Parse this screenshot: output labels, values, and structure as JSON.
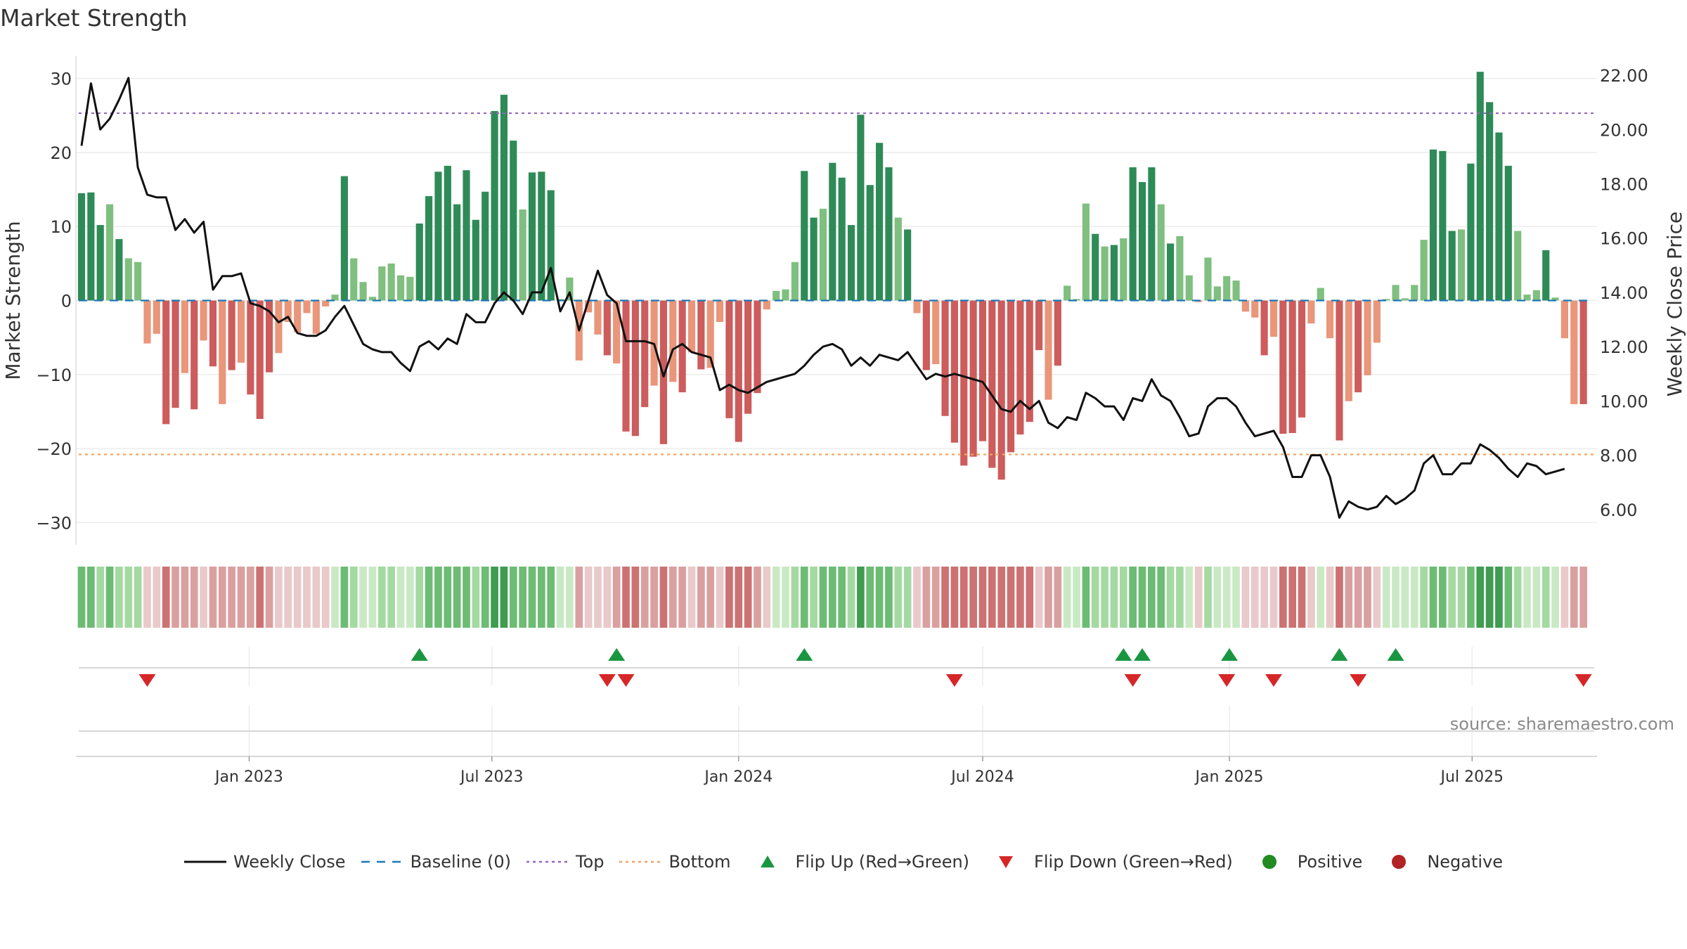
{
  "title": "Market Strength",
  "source": "source: sharemaestro.com",
  "colors": {
    "green_strong": "#2e8b57",
    "green_light": "#7fbf7f",
    "red_strong": "#cd5c5c",
    "red_light": "#e9967a",
    "close_line": "#111111",
    "baseline": "#1f77b4",
    "top": "#9467bd",
    "bottom": "#f4a460",
    "flip_up": "#1a9641",
    "flip_down": "#d62728",
    "positive": "#228b22",
    "negative": "#b22222"
  },
  "legend": [
    {
      "key": "close",
      "label": "Weekly Close"
    },
    {
      "key": "baseline",
      "label": "Baseline (0)"
    },
    {
      "key": "top",
      "label": "Top"
    },
    {
      "key": "bottom",
      "label": "Bottom"
    },
    {
      "key": "flip_up",
      "label": "Flip Up (Red→Green)"
    },
    {
      "key": "flip_down",
      "label": "Flip Down (Green→Red)"
    },
    {
      "key": "positive",
      "label": "Positive"
    },
    {
      "key": "negative",
      "label": "Negative"
    }
  ],
  "chart_data": {
    "type": "bar",
    "title": "Market Strength",
    "ylabel": "Market Strength",
    "y2label": "Weekly Close Price",
    "ylim": [
      -33,
      33
    ],
    "yticks": [
      30,
      20,
      10,
      0,
      -10,
      -20,
      -30
    ],
    "ytick_labels": [
      "30",
      "20",
      "10",
      "0",
      "−10",
      "−20",
      "−30"
    ],
    "y2lim": [
      4.7,
      22.7
    ],
    "y2ticks": [
      22,
      20,
      18,
      16,
      14,
      12,
      10,
      8,
      6
    ],
    "y2tick_labels": [
      "22.00",
      "20.00",
      "18.00",
      "16.00",
      "14.00",
      "12.00",
      "10.00",
      "8.00",
      "6.00"
    ],
    "x_start": "2022-08-29",
    "x_end": "2025-09-29",
    "x_step_days": 7,
    "xtick_dates": [
      "2023-01-01",
      "2023-07-01",
      "2024-01-01",
      "2024-07-01",
      "2025-01-01",
      "2025-07-01"
    ],
    "xtick_labels": [
      "Jan 2023",
      "Jul 2023",
      "Jan 2024",
      "Jul 2024",
      "Jan 2025",
      "Jul 2025"
    ],
    "top_level": 25.3,
    "bottom_level": -20.8,
    "baseline": 0,
    "strength": [
      14.5,
      14.6,
      10.2,
      13,
      8.3,
      5.7,
      5.2,
      -5.8,
      -4.5,
      -16.7,
      -14.5,
      -9.8,
      -14.7,
      -5.4,
      -8.9,
      -14,
      -9.4,
      -8.4,
      -12.7,
      -16,
      -9.7,
      -7.1,
      -2.9,
      -4.3,
      -1.7,
      -4.5,
      -0.8,
      0.8,
      16.8,
      5.7,
      2.5,
      0.5,
      4.6,
      5,
      3.4,
      3.2,
      10.4,
      14.1,
      17.4,
      18.2,
      13,
      17.6,
      10.9,
      14.7,
      25.6,
      27.8,
      21.6,
      12.3,
      17.3,
      17.4,
      14.9,
      0.2,
      3.1,
      -8.1,
      -1.6,
      -4.6,
      -7.4,
      -8.5,
      -17.7,
      -18.3,
      -14.4,
      -11.5,
      -19.4,
      -11,
      -12.4,
      -7,
      -9.3,
      -9.1,
      -2.9,
      -15.9,
      -19.1,
      -15.3,
      -12.5,
      -1.2,
      1.3,
      1.5,
      5.2,
      17.5,
      11.2,
      12.4,
      18.6,
      16.6,
      10.2,
      25.1,
      15.6,
      21.3,
      18,
      11.2,
      9.6,
      -1.7,
      -9.4,
      -8.6,
      -15.6,
      -19.2,
      -22.3,
      -21.1,
      -19,
      -22.6,
      -24.2,
      -20.5,
      -18.1,
      -16.4,
      -6.7,
      -13.4,
      -8.8,
      2,
      0.2,
      13.1,
      9,
      7.3,
      7.5,
      8.4,
      18,
      16,
      18,
      13,
      7.7,
      8.7,
      3.4,
      -0.2,
      5.8,
      1.9,
      3.3,
      2.7,
      -1.5,
      -2.3,
      -7.4,
      -4.9,
      -18,
      -17.9,
      -15.8,
      -3.1,
      1.7,
      -5.1,
      -18.9,
      -13.6,
      -12.4,
      -10.1,
      -5.7,
      0.2,
      2.1,
      0.3,
      2.1,
      8.2,
      20.4,
      20.2,
      9.4,
      9.6,
      18.5,
      30.9,
      26.8,
      22.7,
      18.2,
      9.4,
      0.8,
      1.4,
      6.8,
      0.4,
      -5.1,
      -14,
      -14
    ],
    "close": [
      19.4,
      21.7,
      20,
      20.4,
      21.1,
      21.9,
      18.6,
      17.6,
      17.5,
      17.5,
      16.3,
      16.7,
      16.2,
      16.6,
      14.1,
      14.6,
      14.6,
      14.7,
      13.6,
      13.5,
      13.3,
      12.9,
      13.1,
      12.5,
      12.4,
      12.4,
      12.6,
      13.1,
      13.5,
      12.8,
      12.1,
      11.9,
      11.8,
      11.8,
      11.4,
      11.1,
      12,
      12.2,
      11.9,
      12.3,
      12.1,
      13.2,
      12.9,
      12.9,
      13.6,
      14,
      13.7,
      13.2,
      14,
      14,
      14.9,
      13.3,
      14,
      12.6,
      13.7,
      14.8,
      13.9,
      13.6,
      12.2,
      12.2,
      12.2,
      12.1,
      10.9,
      11.9,
      12.1,
      11.8,
      11.7,
      11.6,
      10.4,
      10.6,
      10.4,
      10.3,
      10.5,
      10.7,
      10.8,
      10.9,
      11,
      11.3,
      11.7,
      12,
      12.1,
      11.9,
      11.3,
      11.6,
      11.3,
      11.7,
      11.6,
      11.5,
      11.8,
      11.3,
      10.8,
      11,
      10.9,
      11,
      10.9,
      10.8,
      10.7,
      10.2,
      9.7,
      9.6,
      10,
      9.7,
      10,
      9.2,
      9,
      9.4,
      9.3,
      10.3,
      10.1,
      9.8,
      9.8,
      9.3,
      10.1,
      10,
      10.8,
      10.2,
      10,
      9.4,
      8.7,
      8.8,
      9.8,
      10.1,
      10.1,
      9.8,
      9.2,
      8.7,
      8.8,
      8.9,
      8.3,
      7.2,
      7.2,
      8,
      8,
      7.2,
      5.7,
      6.3,
      6.1,
      6,
      6.1,
      6.5,
      6.2,
      6.4,
      6.7,
      7.7,
      8,
      7.3,
      7.3,
      7.7,
      7.7,
      8.4,
      8.2,
      7.9,
      7.5,
      7.2,
      7.7,
      7.6,
      7.3,
      7.4,
      7.5
    ]
  },
  "ribbon_shades": [
    "#3f9c51",
    "#6cbc73",
    "#a5d9a2",
    "#c9e9c4",
    "#e9c9c9",
    "#daa0a0",
    "#cd7272"
  ],
  "flip_up_dates": [
    "2023-05-08",
    "2023-10-02",
    "2024-02-19",
    "2024-10-14",
    "2024-10-28",
    "2025-01-01",
    "2025-03-24",
    "2025-05-05"
  ],
  "flip_down_dates": [
    "2022-10-17",
    "2023-09-25",
    "2023-10-09",
    "2024-06-10",
    "2024-10-21",
    "2024-12-30",
    "2025-02-03",
    "2025-04-07",
    "2025-09-22"
  ]
}
